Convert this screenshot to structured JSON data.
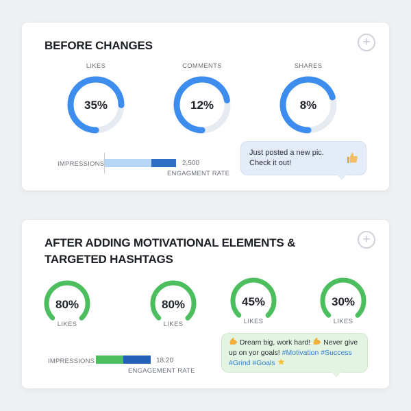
{
  "before": {
    "title": "BEFORE CHANGES",
    "add_icon": "plus-circle-icon",
    "metrics": [
      {
        "label": "LIKES",
        "value": "35%",
        "fill": 0.75
      },
      {
        "label": "COMMENTS",
        "value": "12%",
        "fill": 0.72
      },
      {
        "label": "SHARES",
        "value": "8%",
        "fill": 0.7
      }
    ],
    "bar": {
      "label": "IMPRESSIONS",
      "value": "2,500",
      "caption": "ENGAGMENT RATE",
      "segments": [
        {
          "color": "#b7d6f5",
          "fraction": 0.65
        },
        {
          "color": "#2c6fc4",
          "fraction": 0.35
        }
      ]
    },
    "bubble": {
      "line1": "Just posted a new pic.",
      "line2": "Check it out!",
      "icon": "thumbs-up-icon"
    },
    "ring_color": "#3d8def",
    "ring_track": "#e6ebf2"
  },
  "after": {
    "title_line1": "AFTER ADDING MOTIVATIONAL ELEMENTS &",
    "title_line2": "TARGETED HASHTAGS",
    "add_icon": "plus-circle-icon",
    "metrics": [
      {
        "label": "LIKES",
        "value": "80%",
        "fill": 0.75
      },
      {
        "label": "LIKES",
        "value": "80%",
        "fill": 0.75
      },
      {
        "label": "LIKES",
        "value": "45%",
        "fill": 0.75
      },
      {
        "label": "LIKES",
        "value": "30%",
        "fill": 0.75
      }
    ],
    "bar": {
      "label": "IMPRESSIONS",
      "value": "18.20",
      "caption": "ENGAGEMENT RATE",
      "segments": [
        {
          "color": "#4cbe5e",
          "fraction": 0.5
        },
        {
          "color": "#2360b8",
          "fraction": 0.5
        }
      ]
    },
    "bubble": {
      "part1": "Dream big, work hard!",
      "part2": "Never give up",
      "part3": "on yor goals!",
      "tags": "#Motivation #Success #Grind",
      "tag_last": "#Goals",
      "icon_start": "flexed-biceps-icon",
      "icon_mid": "flexed-biceps-icon",
      "icon_end": "star-icon"
    },
    "ring_color": "#4cbe5e"
  }
}
